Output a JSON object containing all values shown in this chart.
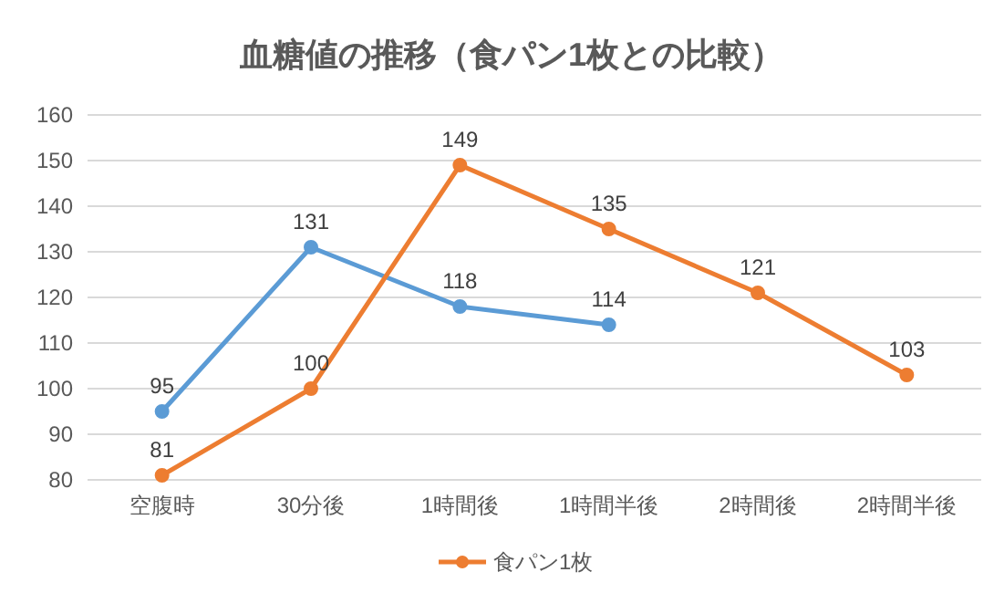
{
  "chart_data": {
    "type": "line",
    "title": "血糖値の推移（食パン1枚との比較）",
    "categories": [
      "空腹時",
      "30分後",
      "1時間後",
      "1時間半後",
      "2時間後",
      "2時間半後"
    ],
    "series": [
      {
        "color": "#5b9bd5",
        "values": [
          95,
          131,
          118,
          114,
          null,
          null
        ]
      },
      {
        "name": "食パン1枚",
        "color": "#ed7d31",
        "values": [
          81,
          100,
          149,
          135,
          121,
          103
        ]
      }
    ],
    "ylim": [
      80,
      160
    ],
    "yticks": [
      80,
      90,
      100,
      110,
      120,
      130,
      140,
      150,
      160
    ],
    "grid": "y",
    "legend": "bottom",
    "marker": "circle",
    "line_style": "solid",
    "data_labels": true
  }
}
